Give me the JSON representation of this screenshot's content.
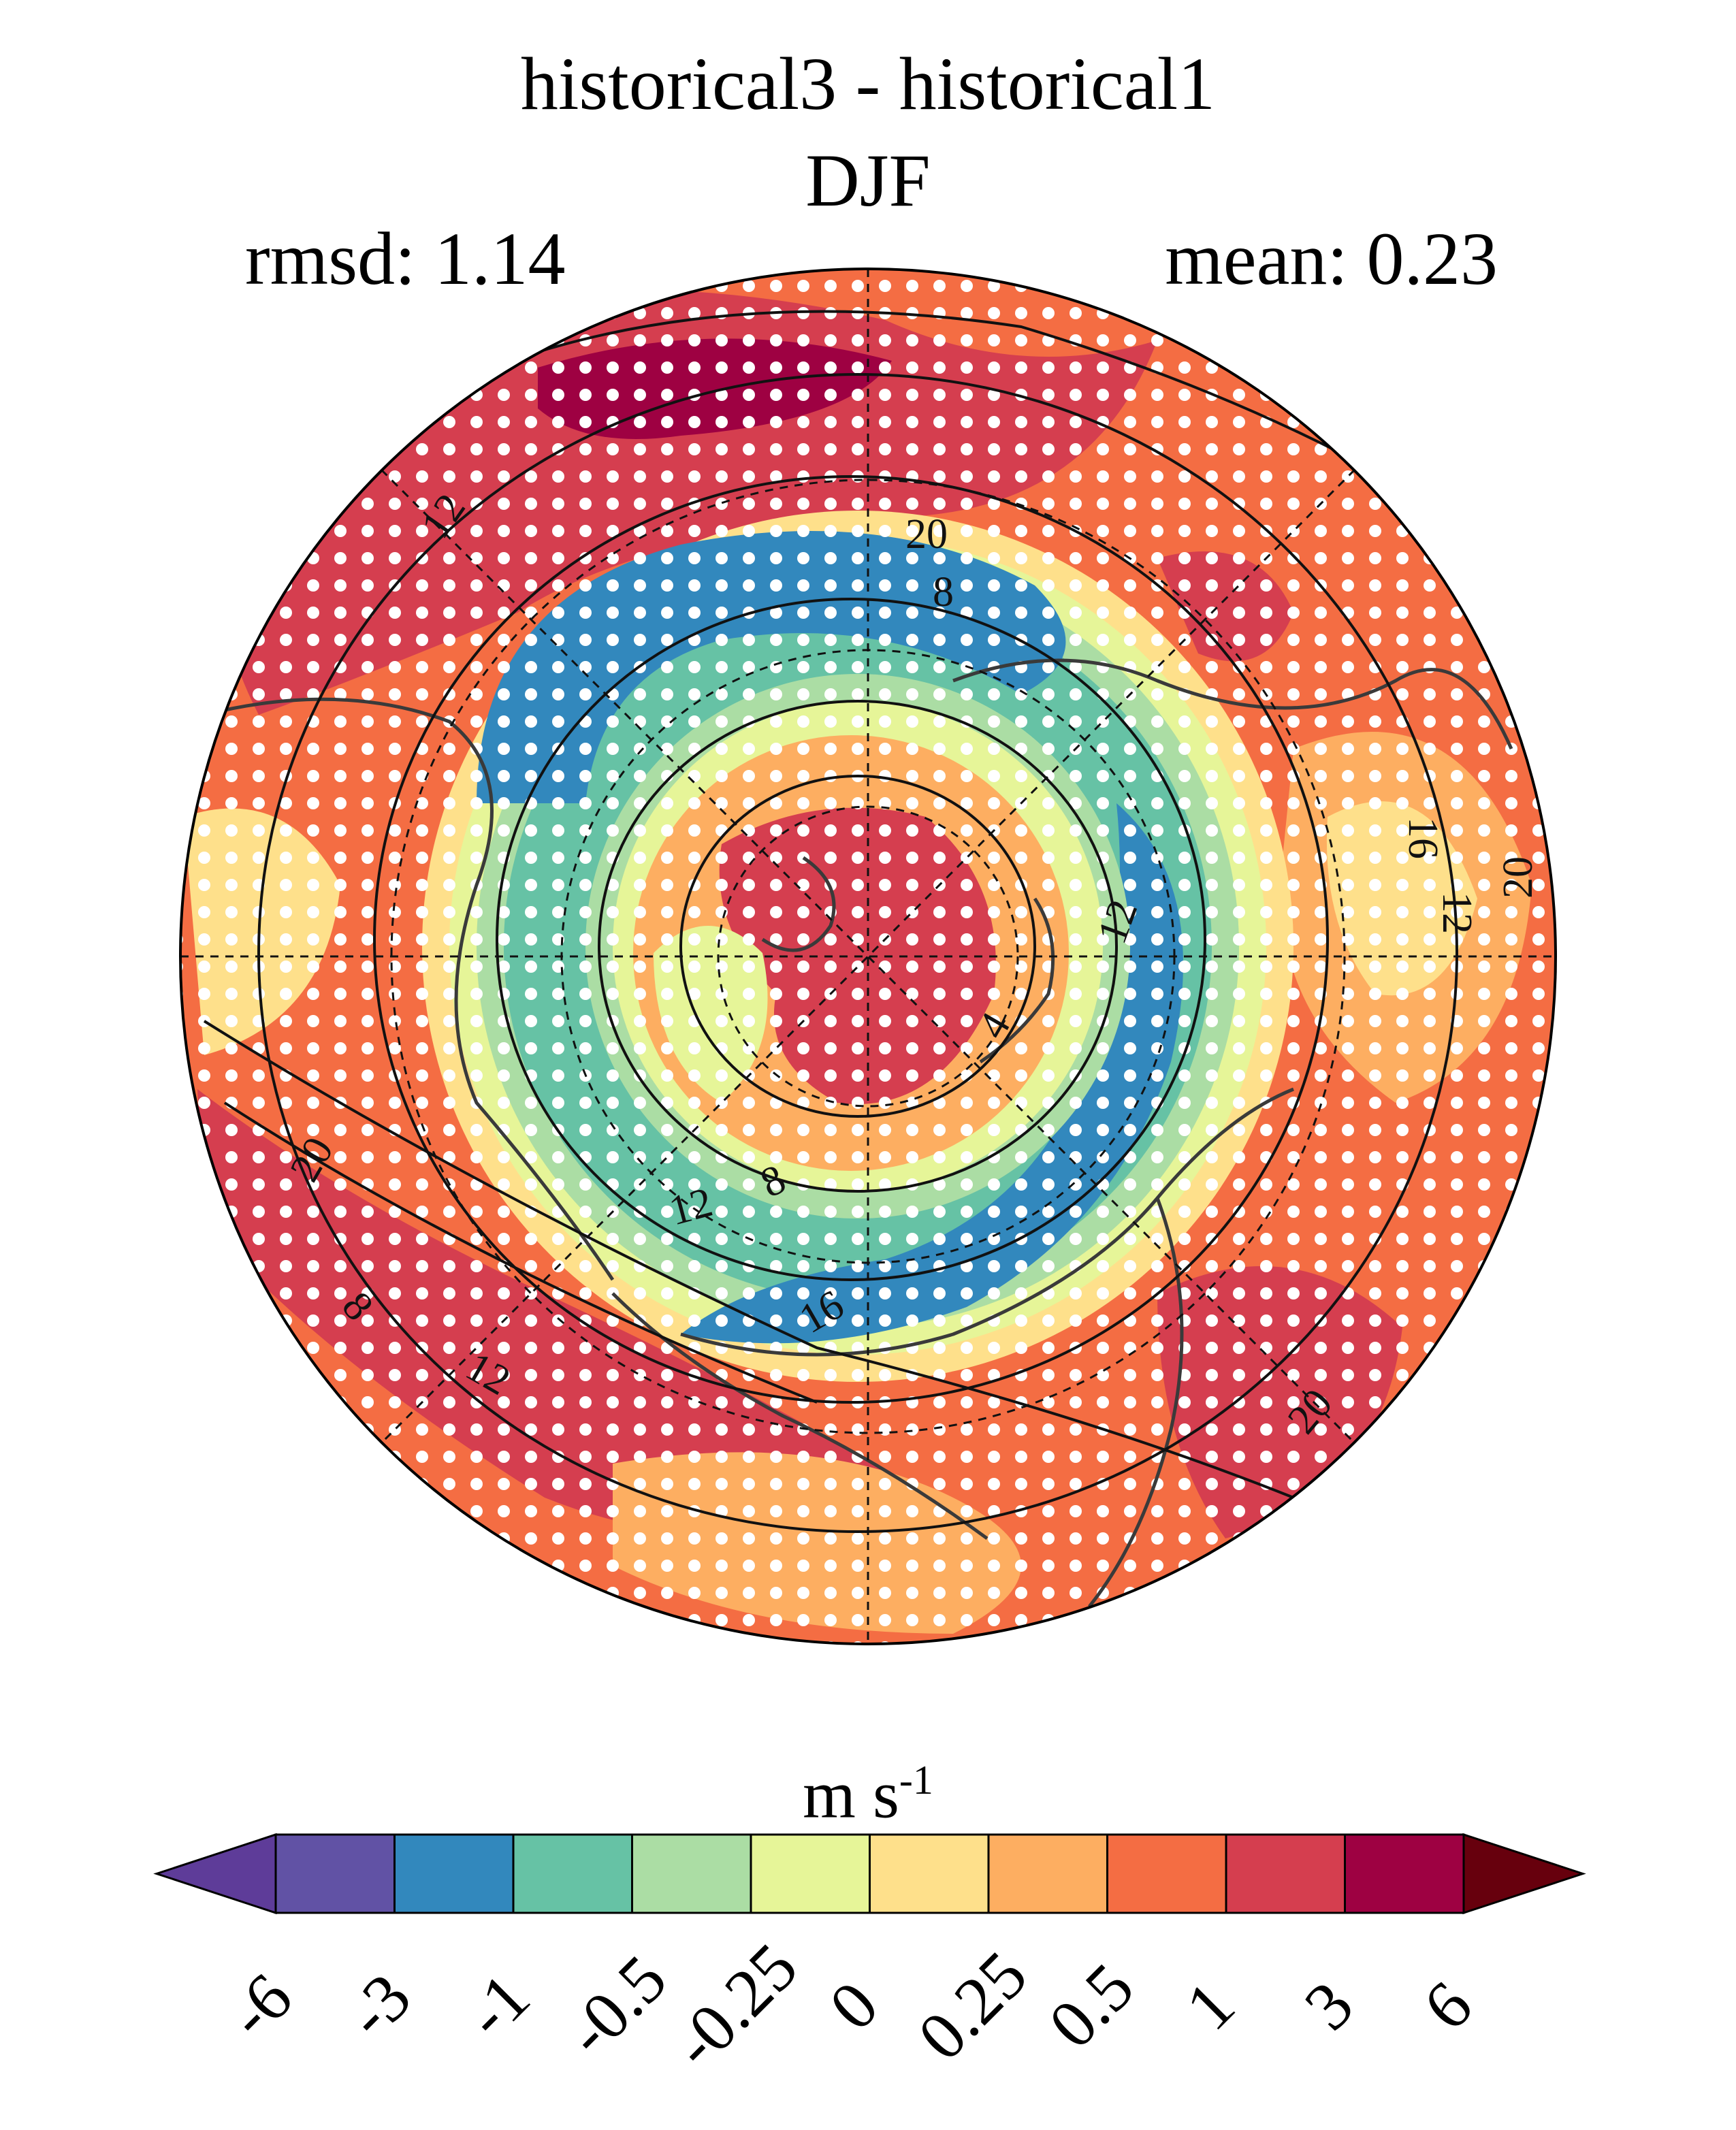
{
  "title": "historical3 - historical1",
  "subtitle": "DJF",
  "rmsd_label": "rmsd: 1.14",
  "mean_label": "mean: 0.23",
  "colorbar": {
    "unit_base": "m s",
    "unit_exp": "-1",
    "ticks": [
      "-6",
      "-3",
      "-1",
      "-0.5",
      "-0.25",
      "0",
      "0.25",
      "0.5",
      "1",
      "3",
      "6"
    ],
    "bins": [
      {
        "color": "#5e3c99",
        "range": "under -6"
      },
      {
        "color": "#6152a5",
        "range": "-6 to -3"
      },
      {
        "color": "#3288bd",
        "range": "-3 to -1"
      },
      {
        "color": "#66c2a5",
        "range": "-1 to -0.5"
      },
      {
        "color": "#abdda4",
        "range": "-0.5 to -0.25"
      },
      {
        "color": "#e6f598",
        "range": "-0.25 to 0"
      },
      {
        "color": "#fee08b",
        "range": "0 to 0.25"
      },
      {
        "color": "#fdae61",
        "range": "0.25 to 0.5"
      },
      {
        "color": "#f46d43",
        "range": "0.5 to 1"
      },
      {
        "color": "#d53e4f",
        "range": "1 to 3"
      },
      {
        "color": "#9e0142",
        "range": "3 to 6"
      },
      {
        "color": "#67000d",
        "range": "over 6"
      }
    ]
  },
  "chart_data": {
    "type": "heatmap",
    "projection": "north-polar-stereographic",
    "field": "DJF difference, historical3 - historical1",
    "rmsd": 1.14,
    "mean": 0.23,
    "contour_labels": [
      "20",
      "8",
      "12",
      "12",
      "4",
      "16",
      "12",
      "20",
      "20",
      "8",
      "12",
      "16",
      "12",
      "8",
      "20"
    ],
    "stippling": "white dots over significant regions"
  }
}
